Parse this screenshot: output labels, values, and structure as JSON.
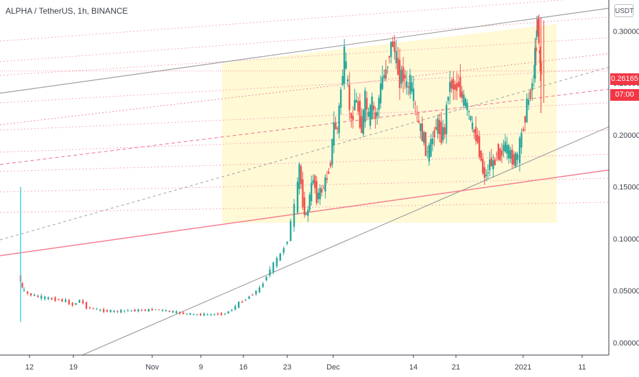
{
  "header": {
    "title": "ALPHA / TetherUS, 1h, BINANCE",
    "unit_button": "USDT"
  },
  "price_badge": {
    "value": "0.26165",
    "countdown": "07:00",
    "color": "#f23645"
  },
  "colors": {
    "up": "#26a69a",
    "down": "#ef5350",
    "channel": "#9e9e9e",
    "support": "#f77c8e",
    "level": "#f7a9b8",
    "zone": "#fff9d6",
    "midline": "#9e9e9e"
  },
  "chart_data": {
    "type": "candlestick",
    "ylim": [
      -0.012,
      0.33
    ],
    "yticks": [
      0.0,
      0.05,
      0.1,
      0.15,
      0.2,
      0.25,
      0.3
    ],
    "ytick_labels": [
      "0.00000",
      "0.05000",
      "0.10000",
      "0.15000",
      "0.20000",
      "0.25000",
      "0.30000"
    ],
    "xlim": [
      0,
      72
    ],
    "xticks": [
      {
        "x": 5,
        "label": "12"
      },
      {
        "x": 12,
        "label": "19"
      },
      {
        "x": 26,
        "label": "Nov"
      },
      {
        "x": 33,
        "label": "9"
      },
      {
        "x": 40,
        "label": "16"
      },
      {
        "x": 47,
        "label": "23"
      },
      {
        "x": 54,
        "label": "Dec"
      },
      {
        "x": 61,
        "label": "14"
      },
      {
        "x": 68,
        "label": "21"
      }
    ],
    "xticks_extra": [
      {
        "label": "2021"
      },
      {
        "label": "11"
      }
    ],
    "price_path": [
      [
        0.0,
        0.065
      ],
      [
        0.5,
        0.052
      ],
      [
        1.5,
        0.047
      ],
      [
        3,
        0.044
      ],
      [
        5,
        0.042
      ],
      [
        7,
        0.04
      ],
      [
        8,
        0.036
      ],
      [
        9,
        0.041
      ],
      [
        10,
        0.034
      ],
      [
        12,
        0.031
      ],
      [
        14,
        0.03
      ],
      [
        16,
        0.031
      ],
      [
        18,
        0.031
      ],
      [
        20,
        0.032
      ],
      [
        22,
        0.03
      ],
      [
        24,
        0.028
      ],
      [
        26,
        0.027
      ],
      [
        28,
        0.027
      ],
      [
        30,
        0.028
      ],
      [
        31,
        0.032
      ],
      [
        32,
        0.038
      ],
      [
        33,
        0.042
      ],
      [
        34,
        0.047
      ],
      [
        35,
        0.052
      ],
      [
        36,
        0.065
      ],
      [
        37,
        0.075
      ],
      [
        38,
        0.085
      ],
      [
        39,
        0.1
      ],
      [
        40,
        0.13
      ],
      [
        40.5,
        0.17
      ],
      [
        41,
        0.135
      ],
      [
        41.5,
        0.12
      ],
      [
        42,
        0.14
      ],
      [
        42.5,
        0.16
      ],
      [
        43,
        0.14
      ],
      [
        43.5,
        0.145
      ],
      [
        44,
        0.15
      ],
      [
        44.5,
        0.16
      ],
      [
        45,
        0.175
      ],
      [
        45.5,
        0.21
      ],
      [
        46,
        0.205
      ],
      [
        46.5,
        0.245
      ],
      [
        47,
        0.275
      ],
      [
        47.5,
        0.245
      ],
      [
        48,
        0.21
      ],
      [
        48.5,
        0.235
      ],
      [
        49,
        0.225
      ],
      [
        49.5,
        0.205
      ],
      [
        50,
        0.235
      ],
      [
        50.5,
        0.215
      ],
      [
        51,
        0.23
      ],
      [
        51.5,
        0.215
      ],
      [
        52,
        0.235
      ],
      [
        52.5,
        0.255
      ],
      [
        53,
        0.26
      ],
      [
        53.5,
        0.28
      ],
      [
        54,
        0.29
      ],
      [
        54.5,
        0.27
      ],
      [
        55,
        0.255
      ],
      [
        55.5,
        0.26
      ],
      [
        56,
        0.245
      ],
      [
        56.5,
        0.25
      ],
      [
        57,
        0.235
      ],
      [
        57.5,
        0.215
      ],
      [
        58,
        0.205
      ],
      [
        58.5,
        0.195
      ],
      [
        59,
        0.18
      ],
      [
        59.5,
        0.19
      ],
      [
        60,
        0.205
      ],
      [
        60.5,
        0.21
      ],
      [
        61,
        0.2
      ],
      [
        61.5,
        0.205
      ],
      [
        62,
        0.245
      ],
      [
        62.5,
        0.25
      ],
      [
        63,
        0.245
      ],
      [
        63.5,
        0.25
      ],
      [
        64,
        0.235
      ],
      [
        64.5,
        0.23
      ],
      [
        65,
        0.22
      ],
      [
        65.5,
        0.205
      ],
      [
        66,
        0.2
      ],
      [
        66.5,
        0.185
      ],
      [
        67,
        0.165
      ],
      [
        67.5,
        0.16
      ],
      [
        68,
        0.175
      ],
      [
        68.5,
        0.17
      ],
      [
        69,
        0.185
      ],
      [
        69.5,
        0.18
      ],
      [
        70,
        0.19
      ],
      [
        70.5,
        0.185
      ],
      [
        71,
        0.18
      ],
      [
        71.5,
        0.175
      ],
      [
        72,
        0.18
      ]
    ],
    "late_path": [
      [
        0,
        0.18
      ],
      [
        1,
        0.2
      ],
      [
        2,
        0.22
      ],
      [
        3,
        0.235
      ],
      [
        4,
        0.25
      ],
      [
        4.6,
        0.275
      ],
      [
        5,
        0.305
      ],
      [
        5.4,
        0.31
      ],
      [
        5.8,
        0.27
      ],
      [
        6.2,
        0.262
      ]
    ],
    "spike": {
      "x": 0.0,
      "low": 0.02,
      "high": 0.15
    }
  }
}
